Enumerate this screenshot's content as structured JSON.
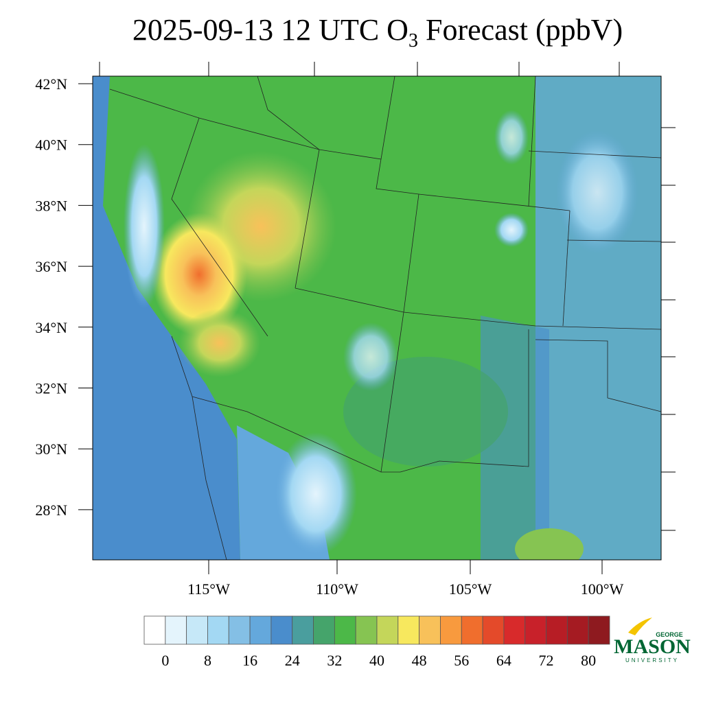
{
  "header": {
    "title_main": "2025-09-13 12 UTC O",
    "title_sub": "3",
    "title_end": " Forecast (ppbV)"
  },
  "map": {
    "lat_labels": [
      "42°N",
      "40°N",
      "38°N",
      "36°N",
      "34°N",
      "32°N",
      "30°N",
      "28°N"
    ],
    "lon_labels": [
      "115°W",
      "110°W",
      "105°W",
      "100°W"
    ]
  },
  "colorbar": {
    "labels": [
      0,
      8,
      16,
      24,
      32,
      40,
      48,
      56,
      64,
      72,
      80
    ],
    "colors": [
      "#ffffff",
      "#e4f4fc",
      "#c6e8f8",
      "#a3d8f3",
      "#84bfe5",
      "#64a8dc",
      "#4a8dcc",
      "#4a9e9e",
      "#45a46b",
      "#4cb848",
      "#86c452",
      "#c4d65a",
      "#f7e85e",
      "#f8c15a",
      "#f89a3e",
      "#f06e2d",
      "#e44a2a",
      "#d82a2b",
      "#c8212a",
      "#b71d25",
      "#a51b22",
      "#8e1a1f"
    ]
  },
  "logo": {
    "top": "GEORGE",
    "main": "MASON",
    "bottom": "UNIVERSITY"
  }
}
